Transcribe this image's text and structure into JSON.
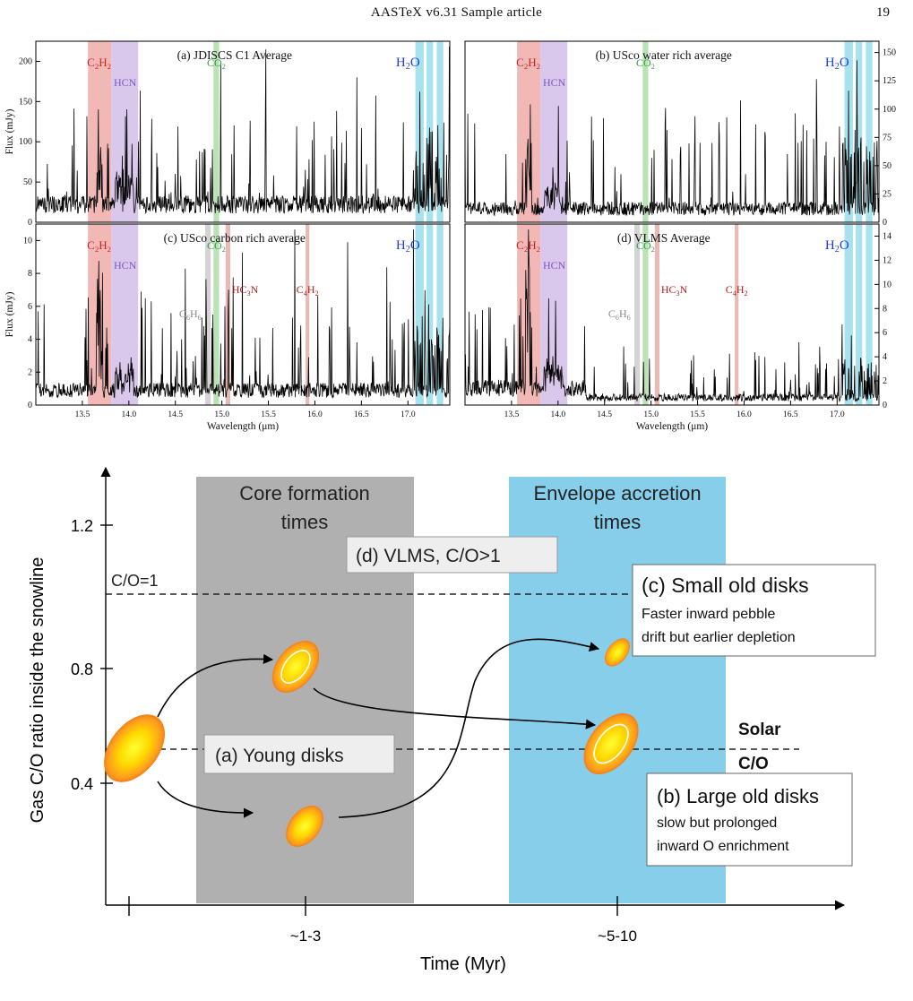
{
  "header": {
    "running_head": "AASTeX v6.31 Sample article",
    "page_number": "19"
  },
  "spectra_figure": {
    "x_axis_label": "Wavelength (μm)",
    "band_colors": {
      "C2H2": "#f2b8b5",
      "HCN": "#d9c7ec",
      "CO2": "#b9e3b4",
      "H2O": "#a7e3ee",
      "C6H6": "#d4d4d4",
      "HC3N": "#e8b9b5",
      "C4H2": "#e8b9b5"
    },
    "label_colors": {
      "C2H2": "#c62828",
      "HCN": "#7e57c2",
      "CO2": "#2e9e3e",
      "H2O": "#1e3fd6",
      "C6H6": "#8a8a8a",
      "HC3N": "#b71c1c",
      "C4H2": "#b71c1c"
    },
    "molecule_labels": {
      "C2H2": [
        "C",
        "2",
        "H",
        "2"
      ],
      "HCN": [
        "HCN"
      ],
      "CO2": [
        "CO",
        "2"
      ],
      "H2O": [
        "H",
        "2",
        "O"
      ],
      "C6H6": [
        "C",
        "6",
        "H",
        "6"
      ],
      "HC3N": [
        "HC",
        "3",
        "N"
      ],
      "C4H2": [
        "C",
        "4",
        "H",
        "2"
      ]
    },
    "panels": [
      {
        "id": "a",
        "title": "(a) JDISCS C1 Average",
        "y_label": "Flux (mJy)",
        "y_side": "left",
        "y_ticks": [
          "0",
          "50",
          "100",
          "150",
          "200"
        ],
        "y_range": [
          0,
          225
        ],
        "x_ticks": [],
        "extra_molecules": false,
        "baseline": 22,
        "peak": 210,
        "seed": 11
      },
      {
        "id": "b",
        "title": "(b) USco water rich average",
        "y_label": "",
        "y_side": "right",
        "y_ticks": [
          "0",
          "25",
          "50",
          "75",
          "100",
          "125",
          "150"
        ],
        "y_range": [
          0,
          160
        ],
        "x_ticks": [],
        "extra_molecules": false,
        "baseline": 12,
        "peak": 150,
        "seed": 23
      },
      {
        "id": "c",
        "title": "(c) USco carbon rich average",
        "y_label": "Flux (mJy)",
        "y_side": "left",
        "y_ticks": [
          "0",
          "2",
          "4",
          "6",
          "8",
          "10"
        ],
        "y_range": [
          0,
          11
        ],
        "x_ticks": [
          "13.5",
          "14.0",
          "14.5",
          "15.0",
          "15.5",
          "16.0",
          "16.5",
          "17.0"
        ],
        "extra_molecules": true,
        "baseline": 0.9,
        "peak": 10.5,
        "seed": 37
      },
      {
        "id": "d",
        "title": "(d) VLMS Average",
        "y_label": "",
        "y_side": "right",
        "y_ticks": [
          "0",
          "2",
          "4",
          "6",
          "8",
          "10",
          "12",
          "14"
        ],
        "y_range": [
          0,
          15
        ],
        "x_ticks": [
          "13.5",
          "14.0",
          "14.5",
          "15.0",
          "15.5",
          "16.0",
          "16.5",
          "17.0"
        ],
        "extra_molecules": true,
        "baseline": 1.4,
        "peak": 14.6,
        "seed": 53
      }
    ]
  },
  "diagram": {
    "y_axis_label": "Gas C/O ratio inside the snowline",
    "x_axis_label": "Time (Myr)",
    "y_ticks": [
      "1.2",
      "0.8",
      "0.4"
    ],
    "x_ticks": [
      "~1-3",
      "~5-10"
    ],
    "core_band": {
      "label_line1": "Core formation",
      "label_line2": "times",
      "color": "#b0b0b0"
    },
    "envelope_band": {
      "label_line1": "Envelope accretion",
      "label_line2": "times",
      "color": "#87ceeb"
    },
    "co_one_label": "C/O=1",
    "solar_label_line1": "Solar",
    "solar_label_line2": "C/O",
    "box_vlms": "(d) VLMS, C/O>1",
    "box_young": "(a) Young disks",
    "box_small": {
      "title": "(c) Small old disks",
      "line1": "Faster inward pebble",
      "line2": "drift but earlier depletion"
    },
    "box_large": {
      "title": "(b) Large old disks",
      "line1": "slow but prolonged",
      "line2": "inward O enrichment"
    }
  }
}
